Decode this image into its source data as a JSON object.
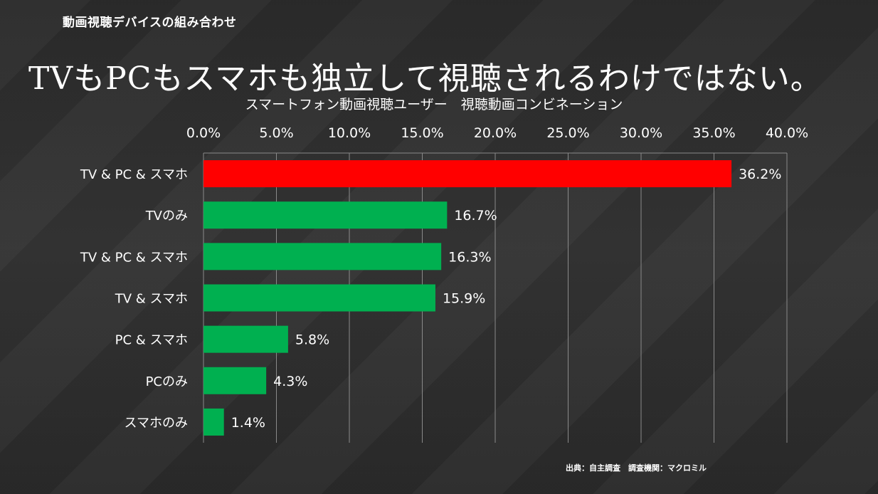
{
  "header": {
    "section_title": "動画視聴デバイスの組み合わせ",
    "main_title": "TVもPCもスマホも独立して視聴されるわけではない。"
  },
  "source_note": "出典：自主調査　調査機関：マクロミル",
  "colors": {
    "background": "#2d2d2d",
    "highlight_bar": "#ff0000",
    "bar": "#00b050",
    "gridline": "#8a8a8a",
    "text": "#ffffff"
  },
  "chart_data": {
    "type": "bar",
    "orientation": "horizontal",
    "title": "スマートフォン動画視聴ユーザー　視聴動画コンビネーション",
    "xlabel": "",
    "ylabel": "",
    "xlim": [
      0,
      40
    ],
    "x_ticks": [
      "0.0%",
      "5.0%",
      "10.0%",
      "15.0%",
      "20.0%",
      "25.0%",
      "30.0%",
      "35.0%",
      "40.0%"
    ],
    "x_axis_position": "top",
    "grid": true,
    "categories": [
      "TV & PC & スマホ",
      "TVのみ",
      "TV & PC & スマホ",
      "TV & スマホ",
      "PC & スマホ",
      "PCのみ",
      "スマホのみ"
    ],
    "values": [
      36.2,
      16.7,
      16.3,
      15.9,
      5.8,
      4.3,
      1.4
    ],
    "data_labels": [
      "36.2%",
      "16.7%",
      "16.3%",
      "15.9%",
      "5.8%",
      "4.3%",
      "1.4%"
    ],
    "highlight_index": 0
  }
}
